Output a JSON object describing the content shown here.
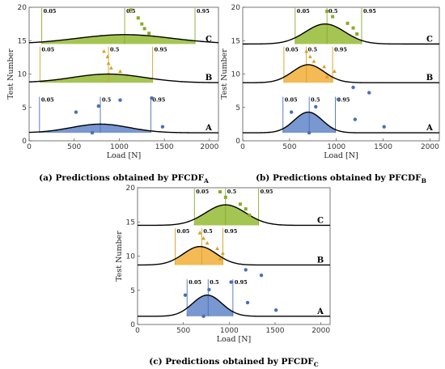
{
  "chart_data": [
    {
      "type": "scatter",
      "panel": "a",
      "caption": "Predictions obtained by PFCDF",
      "caption_prefix": "(a)",
      "caption_sub": "A",
      "xlabel": "Load [N]",
      "ylabel": "Test Number",
      "xlim": [
        0,
        2100
      ],
      "ylim": [
        0,
        20
      ],
      "xticks": [
        0,
        500,
        1000,
        1500,
        2000
      ],
      "yticks": [
        0,
        5,
        10,
        15,
        20
      ],
      "groups": [
        {
          "label": "C",
          "color": "#8aaa2a",
          "fill": "#9bbf3f",
          "marker": "square",
          "baseline": 14.5,
          "peak": 15.9,
          "mean": 1060,
          "sd": 530,
          "quantiles": [
            {
              "label": "0.05",
              "x": 140
            },
            {
              "label": "0.5",
              "x": 1060
            },
            {
              "label": "0.95",
              "x": 1840
            }
          ],
          "points": [
            [
              1130,
              19.6
            ],
            [
              1210,
              18.4
            ],
            [
              1250,
              17.5
            ],
            [
              1280,
              16.8
            ],
            [
              1330,
              16.1
            ]
          ]
        },
        {
          "label": "B",
          "color": "#d4a020",
          "fill": "#9bbf3f",
          "marker": "triangle",
          "baseline": 8.7,
          "peak": 10.0,
          "mean": 880,
          "sd": 400,
          "quantiles": [
            {
              "label": "0.05",
              "x": 120
            },
            {
              "label": "0.5",
              "x": 880
            },
            {
              "label": "0.95",
              "x": 1370
            }
          ],
          "points": [
            [
              830,
              13.4
            ],
            [
              870,
              12.6
            ],
            [
              880,
              11.6
            ],
            [
              910,
              10.9
            ],
            [
              1010,
              10.4
            ]
          ]
        },
        {
          "label": "A",
          "color": "#4a6fb6",
          "fill": "#6a8ccb",
          "marker": "circle",
          "baseline": 1.2,
          "peak": 2.5,
          "mean": 790,
          "sd": 320,
          "quantiles": [
            {
              "label": "0.05",
              "x": 115
            },
            {
              "label": "0.5",
              "x": 790
            },
            {
              "label": "0.95",
              "x": 1350
            }
          ],
          "points": [
            [
              520,
              4.3
            ],
            [
              770,
              5.2
            ],
            [
              1010,
              6.1
            ],
            [
              1360,
              6.4
            ],
            [
              1480,
              2.1
            ],
            [
              700,
              1.2
            ]
          ]
        }
      ]
    },
    {
      "type": "scatter",
      "panel": "b",
      "caption": "Predictions obtained by PFCDF",
      "caption_prefix": "(b)",
      "caption_sub": "B",
      "xlabel": "Load [N]",
      "ylabel": "Test Number",
      "xlim": [
        0,
        2100
      ],
      "ylim": [
        0,
        20
      ],
      "xticks": [
        0,
        500,
        1000,
        1500,
        2000
      ],
      "yticks": [
        0,
        5,
        10,
        15,
        20
      ],
      "groups": [
        {
          "label": "C",
          "color": "#8aaa2a",
          "fill": "#9bbf3f",
          "marker": "square",
          "baseline": 14.5,
          "peak": 17.5,
          "mean": 880,
          "sd": 210,
          "quantiles": [
            {
              "label": "0.05",
              "x": 560
            },
            {
              "label": "0.5",
              "x": 900
            },
            {
              "label": "0.95",
              "x": 1270
            }
          ],
          "points": [
            [
              900,
              19.4
            ],
            [
              960,
              18.6
            ],
            [
              1120,
              17.6
            ],
            [
              1180,
              16.9
            ],
            [
              1220,
              16.0
            ]
          ]
        },
        {
          "label": "B",
          "color": "#d4a020",
          "fill": "#f2b244",
          "marker": "triangle",
          "baseline": 8.7,
          "peak": 11.4,
          "mean": 700,
          "sd": 170,
          "quantiles": [
            {
              "label": "0.05",
              "x": 440
            },
            {
              "label": "0.5",
              "x": 680
            },
            {
              "label": "0.95",
              "x": 960
            }
          ],
          "points": [
            [
              680,
              13.4
            ],
            [
              720,
              12.6
            ],
            [
              760,
              11.9
            ],
            [
              870,
              11.1
            ],
            [
              980,
              10.4
            ],
            [
              900,
              9.6
            ]
          ]
        },
        {
          "label": "A",
          "color": "#4a6fb6",
          "fill": "#6a8ccb",
          "marker": "circle",
          "baseline": 1.2,
          "peak": 4.3,
          "mean": 700,
          "sd": 150,
          "quantiles": [
            {
              "label": "0.05",
              "x": 430
            },
            {
              "label": "0.5",
              "x": 710
            },
            {
              "label": "0.95",
              "x": 990
            }
          ],
          "points": [
            [
              520,
              4.3
            ],
            [
              780,
              5.1
            ],
            [
              1020,
              6.2
            ],
            [
              1180,
              8.0
            ],
            [
              1350,
              7.2
            ],
            [
              1200,
              3.2
            ],
            [
              1510,
              2.1
            ],
            [
              710,
              1.2
            ]
          ]
        }
      ]
    },
    {
      "type": "scatter",
      "panel": "c",
      "caption": "Predictions obtained by PFCDF",
      "caption_prefix": "(c)",
      "caption_sub": "C",
      "xlabel": "Load [N]",
      "ylabel": "Test Number",
      "xlim": [
        0,
        2100
      ],
      "ylim": [
        0,
        20
      ],
      "xticks": [
        0,
        500,
        1000,
        1500,
        2000
      ],
      "yticks": [
        0,
        5,
        10,
        15,
        20
      ],
      "groups": [
        {
          "label": "C",
          "color": "#8aaa2a",
          "fill": "#9bbf3f",
          "marker": "square",
          "baseline": 14.5,
          "peak": 17.5,
          "mean": 960,
          "sd": 220,
          "quantiles": [
            {
              "label": "0.05",
              "x": 620
            },
            {
              "label": "0.5",
              "x": 960
            },
            {
              "label": "0.95",
              "x": 1320
            }
          ],
          "points": [
            [
              900,
              19.4
            ],
            [
              960,
              18.6
            ],
            [
              1120,
              17.6
            ],
            [
              1180,
              16.9
            ],
            [
              1220,
              16.0
            ]
          ]
        },
        {
          "label": "B",
          "color": "#d4a020",
          "fill": "#f2b244",
          "marker": "triangle",
          "baseline": 8.7,
          "peak": 11.4,
          "mean": 680,
          "sd": 180,
          "quantiles": [
            {
              "label": "0.05",
              "x": 410
            },
            {
              "label": "0.5",
              "x": 700
            },
            {
              "label": "0.95",
              "x": 930
            }
          ],
          "points": [
            [
              680,
              13.4
            ],
            [
              720,
              12.6
            ],
            [
              760,
              11.9
            ],
            [
              870,
              11.1
            ],
            [
              930,
              10.4
            ],
            [
              900,
              9.6
            ]
          ]
        },
        {
          "label": "A",
          "color": "#4a6fb6",
          "fill": "#6a8ccb",
          "marker": "circle",
          "baseline": 1.2,
          "peak": 4.3,
          "mean": 760,
          "sd": 160,
          "quantiles": [
            {
              "label": "0.05",
              "x": 540
            },
            {
              "label": "0.5",
              "x": 770
            },
            {
              "label": "0.95",
              "x": 1040
            }
          ],
          "points": [
            [
              520,
              4.3
            ],
            [
              780,
              5.1
            ],
            [
              1020,
              6.2
            ],
            [
              1180,
              8.0
            ],
            [
              1350,
              7.2
            ],
            [
              1200,
              3.2
            ],
            [
              1510,
              2.1
            ],
            [
              720,
              1.2
            ]
          ]
        }
      ]
    }
  ]
}
